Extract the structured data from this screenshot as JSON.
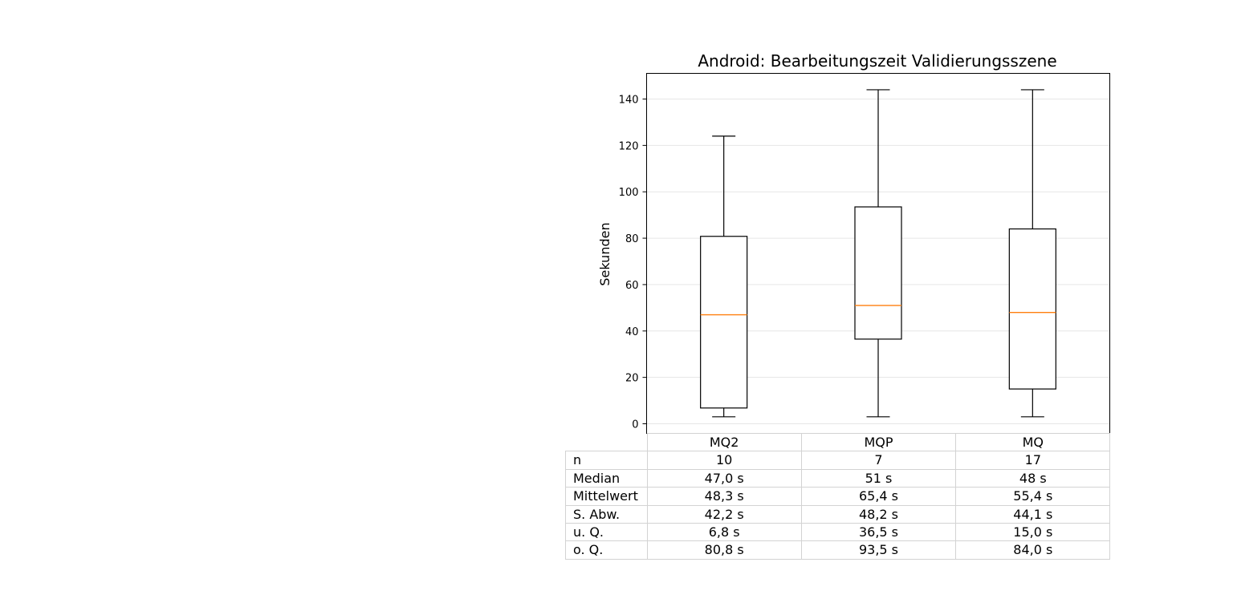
{
  "chart_data": {
    "type": "box",
    "title": "Android: Bearbeitungszeit Validierungsszene",
    "xlabel": "",
    "ylabel": "Sekunden",
    "ylim": [
      -4,
      151
    ],
    "yticks": [
      0,
      20,
      40,
      60,
      80,
      100,
      120,
      140
    ],
    "grid": "horizontal",
    "categories": [
      "MQ2",
      "MQP",
      "MQ"
    ],
    "boxes": [
      {
        "name": "MQ2",
        "whisker_low": 3,
        "q1": 6.8,
        "median": 47.0,
        "q3": 80.8,
        "whisker_high": 124
      },
      {
        "name": "MQP",
        "whisker_low": 3,
        "q1": 36.5,
        "median": 51,
        "q3": 93.5,
        "whisker_high": 144
      },
      {
        "name": "MQ",
        "whisker_low": 3,
        "q1": 15.0,
        "median": 48,
        "q3": 84.0,
        "whisker_high": 144
      }
    ],
    "median_color": "#ff7f0e",
    "box_color": "#000000",
    "grid_color": "#e6e6e6",
    "table": {
      "col_headers": [
        "MQ2",
        "MQP",
        "MQ"
      ],
      "rows": [
        {
          "label": "n",
          "values": [
            "10",
            "7",
            "17"
          ]
        },
        {
          "label": "Median",
          "values": [
            "47,0 s",
            "51 s",
            "48 s"
          ]
        },
        {
          "label": "Mittelwert",
          "values": [
            "48,3 s",
            "65,4 s",
            "55,4 s"
          ]
        },
        {
          "label": "S. Abw.",
          "values": [
            "42,2 s",
            "48,2 s",
            "44,1 s"
          ]
        },
        {
          "label": "u. Q.",
          "values": [
            "6,8 s",
            "36,5 s",
            "15,0 s"
          ]
        },
        {
          "label": "o. Q.",
          "values": [
            "80,8 s",
            "93,5 s",
            "84,0 s"
          ]
        }
      ]
    }
  }
}
